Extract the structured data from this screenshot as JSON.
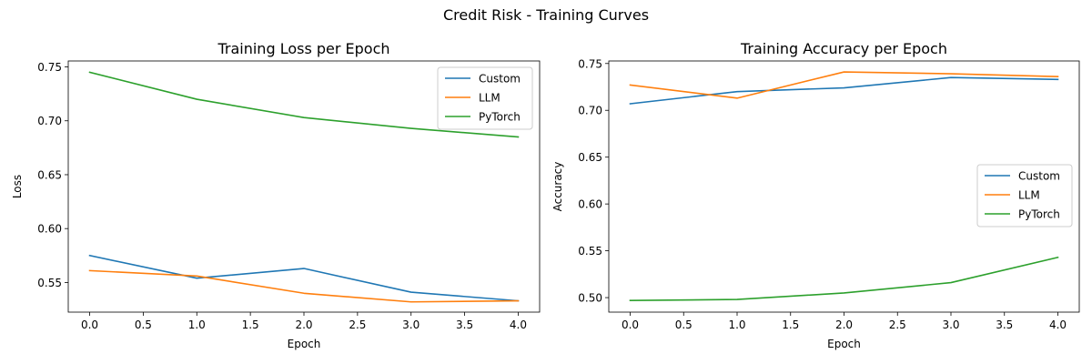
{
  "figure_title": "Credit Risk - Training Curves",
  "chart_data": [
    {
      "type": "line",
      "title": "Training Loss per Epoch",
      "xlabel": "Epoch",
      "ylabel": "Loss",
      "x": [
        0,
        1,
        2,
        3,
        4
      ],
      "xlim": [
        -0.2,
        4.2
      ],
      "ylim": [
        0.5225,
        0.7555
      ],
      "xticks": [
        0.0,
        0.5,
        1.0,
        1.5,
        2.0,
        2.5,
        3.0,
        3.5,
        4.0
      ],
      "xtick_labels": [
        "0.0",
        "0.5",
        "1.0",
        "1.5",
        "2.0",
        "2.5",
        "3.0",
        "3.5",
        "4.0"
      ],
      "yticks": [
        0.55,
        0.6,
        0.65,
        0.7,
        0.75
      ],
      "ytick_labels": [
        "0.55",
        "0.60",
        "0.65",
        "0.70",
        "0.75"
      ],
      "grid": false,
      "legend_position": "top-right",
      "series": [
        {
          "name": "Custom",
          "color": "#1f77b4",
          "values": [
            0.575,
            0.554,
            0.563,
            0.541,
            0.533
          ]
        },
        {
          "name": "LLM",
          "color": "#ff7f0e",
          "values": [
            0.561,
            0.556,
            0.54,
            0.532,
            0.533
          ]
        },
        {
          "name": "PyTorch",
          "color": "#2ca02c",
          "values": [
            0.745,
            0.72,
            0.703,
            0.693,
            0.685
          ]
        }
      ]
    },
    {
      "type": "line",
      "title": "Training Accuracy per Epoch",
      "xlabel": "Epoch",
      "ylabel": "Accuracy",
      "x": [
        0,
        1,
        2,
        3,
        4
      ],
      "xlim": [
        -0.2,
        4.2
      ],
      "ylim": [
        0.4845,
        0.7527
      ],
      "xticks": [
        0.0,
        0.5,
        1.0,
        1.5,
        2.0,
        2.5,
        3.0,
        3.5,
        4.0
      ],
      "xtick_labels": [
        "0.0",
        "0.5",
        "1.0",
        "1.5",
        "2.0",
        "2.5",
        "3.0",
        "3.5",
        "4.0"
      ],
      "yticks": [
        0.5,
        0.55,
        0.6,
        0.65,
        0.7,
        0.75
      ],
      "ytick_labels": [
        "0.50",
        "0.55",
        "0.60",
        "0.65",
        "0.70",
        "0.75"
      ],
      "grid": false,
      "legend_position": "center-right",
      "series": [
        {
          "name": "Custom",
          "color": "#1f77b4",
          "values": [
            0.707,
            0.72,
            0.724,
            0.735,
            0.733
          ]
        },
        {
          "name": "LLM",
          "color": "#ff7f0e",
          "values": [
            0.727,
            0.713,
            0.741,
            0.739,
            0.736
          ]
        },
        {
          "name": "PyTorch",
          "color": "#2ca02c",
          "values": [
            0.497,
            0.498,
            0.505,
            0.516,
            0.543
          ]
        }
      ]
    }
  ]
}
